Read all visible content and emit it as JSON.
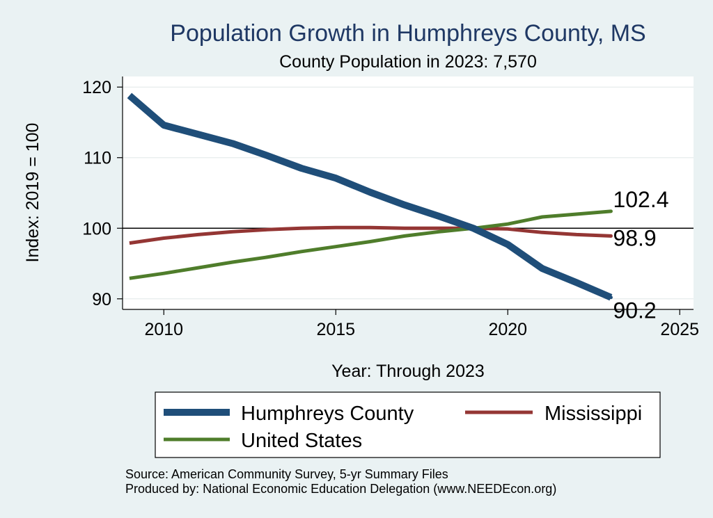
{
  "chart_data": {
    "type": "line",
    "title": "Population Growth in Humphreys County, MS",
    "subtitle": "County Population in 2023: 7,570",
    "xlabel": "Year: Through 2023",
    "ylabel": "Index: 2019 = 100",
    "xlim": [
      2008.8,
      2025.4
    ],
    "ylim": [
      88.5,
      121.5
    ],
    "xticks": [
      2010,
      2015,
      2020,
      2025
    ],
    "yticks": [
      90,
      100,
      110,
      120
    ],
    "reference_line": 100,
    "grid": true,
    "legend_position": "bottom",
    "x": [
      2009,
      2010,
      2011,
      2012,
      2013,
      2014,
      2015,
      2016,
      2017,
      2018,
      2019,
      2020,
      2021,
      2022,
      2023
    ],
    "series": [
      {
        "name": "Humphreys  County",
        "color": "#1f4e79",
        "values": [
          118.8,
          114.6,
          113.3,
          112.0,
          110.3,
          108.5,
          107.1,
          105.1,
          103.3,
          101.7,
          100.0,
          97.7,
          94.3,
          92.3,
          90.2
        ],
        "end_label": "90.2"
      },
      {
        "name": "Mississippi",
        "color": "#943634",
        "values": [
          97.9,
          98.6,
          99.1,
          99.5,
          99.8,
          100.0,
          100.1,
          100.1,
          100.0,
          100.0,
          100.0,
          99.9,
          99.4,
          99.1,
          98.9
        ],
        "end_label": "98.9"
      },
      {
        "name": "United States",
        "color": "#4f7d2b",
        "values": [
          92.9,
          93.6,
          94.4,
          95.2,
          95.9,
          96.7,
          97.4,
          98.1,
          98.9,
          99.5,
          100.0,
          100.6,
          101.6,
          102.0,
          102.4
        ],
        "end_label": "102.4"
      }
    ]
  },
  "footer": {
    "source": "Source: American Community Survey, 5-yr Summary Files",
    "produced": "Produced by: National Economic Education Delegation (www.NEEDEcon.org)"
  }
}
